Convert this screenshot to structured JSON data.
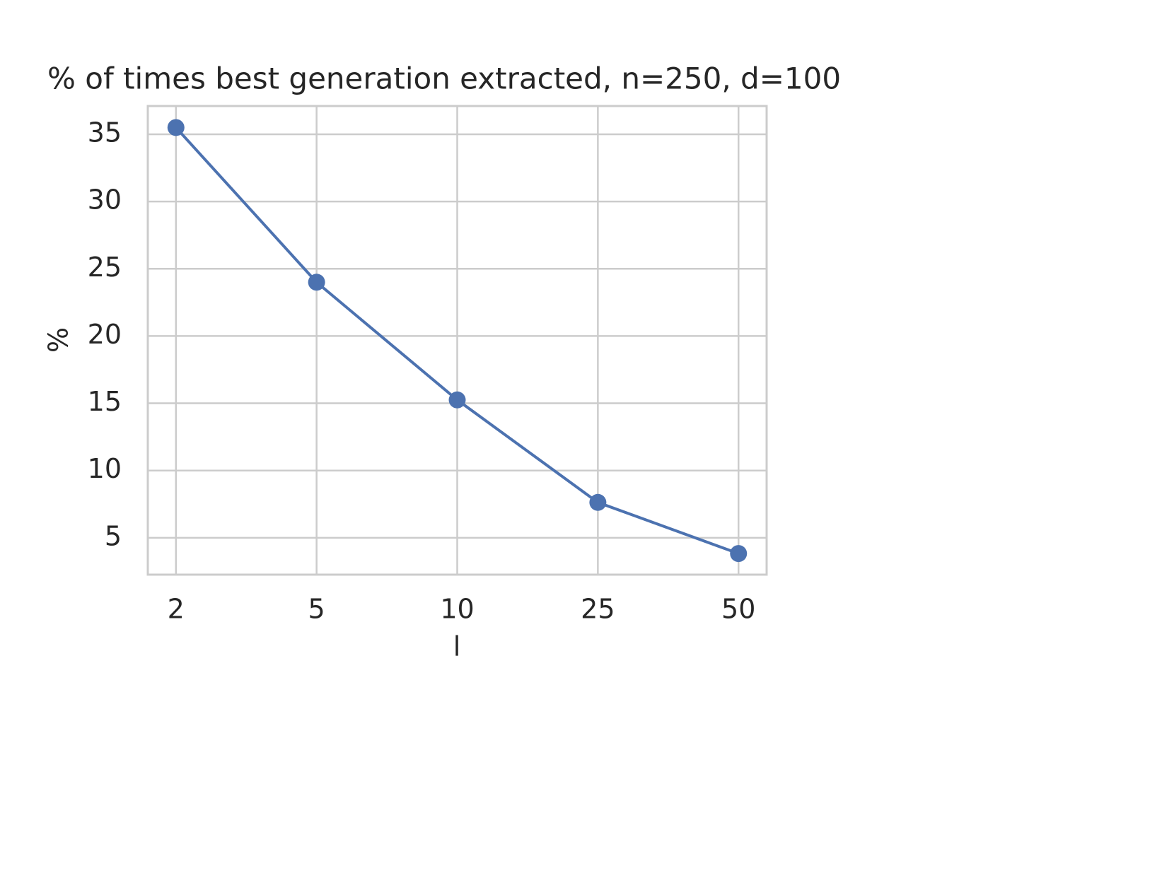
{
  "chart_data": {
    "type": "line",
    "title": "% of times best generation extracted, n=250, d=100",
    "x_label": "l",
    "y_label": "%",
    "categories": [
      "2",
      "5",
      "10",
      "25",
      "50"
    ],
    "values": [
      35.5,
      24.0,
      15.25,
      7.63,
      3.83
    ],
    "color": "#4c72b0",
    "marker": "circle",
    "ylim": [
      2.26,
      37.1
    ],
    "yticks": [
      5,
      10,
      15,
      20,
      25,
      30,
      35
    ],
    "grid": true
  }
}
